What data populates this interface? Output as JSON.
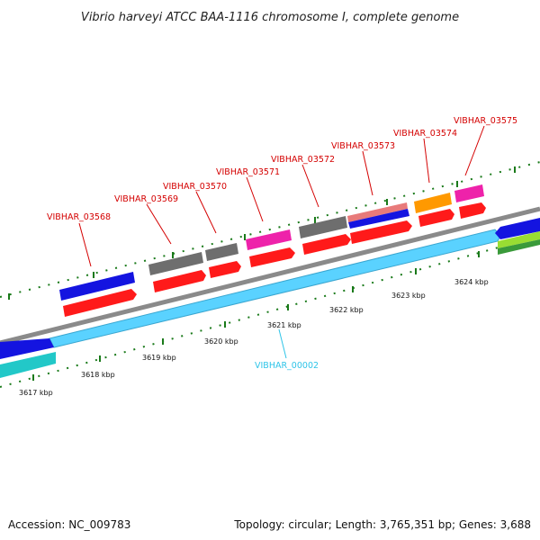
{
  "title": "Vibrio harveyi ATCC BAA-1116 chromosome I, complete genome",
  "footer": {
    "accession": "Accession: NC_009783",
    "topology": "Topology: circular; Length: 3,765,351 bp; Genes: 3,688"
  },
  "colors": {
    "label_red": "#d40000",
    "label_cyan": "#2ec4e8",
    "tick_green": "#1a7a1a",
    "backbone_gray": "#8a8a8a",
    "gene_red": "#ff1a1a",
    "gene_blue": "#1414e0",
    "gene_gray": "#6e6e6e",
    "gene_magenta": "#ee22aa",
    "gene_orange": "#ff9900",
    "gene_cyan_light": "#5ad2ff",
    "gene_teal": "#22c8c8",
    "gene_lime": "#99dd33"
  },
  "kbp_labels": [
    "3617 kbp",
    "3618 kbp",
    "3619 kbp",
    "3620 kbp",
    "3621 kbp",
    "3622 kbp",
    "3623 kbp",
    "3624 kbp"
  ],
  "gene_labels": [
    {
      "id": "VIBHAR_03568",
      "text": "VIBHAR_03568",
      "strand": "upper"
    },
    {
      "id": "VIBHAR_03569",
      "text": "VIBHAR_03569",
      "strand": "upper"
    },
    {
      "id": "VIBHAR_03570",
      "text": "VIBHAR_03570",
      "strand": "upper"
    },
    {
      "id": "VIBHAR_03571",
      "text": "VIBHAR_03571",
      "strand": "upper"
    },
    {
      "id": "VIBHAR_03572",
      "text": "VIBHAR_03572",
      "strand": "upper"
    },
    {
      "id": "VIBHAR_03573",
      "text": "VIBHAR_03573",
      "strand": "upper"
    },
    {
      "id": "VIBHAR_03574",
      "text": "VIBHAR_03574",
      "strand": "upper"
    },
    {
      "id": "VIBHAR_03575",
      "text": "VIBHAR_03575",
      "strand": "upper"
    },
    {
      "id": "VIBHAR_00002",
      "text": "VIBHAR_00002",
      "strand": "lower"
    }
  ]
}
